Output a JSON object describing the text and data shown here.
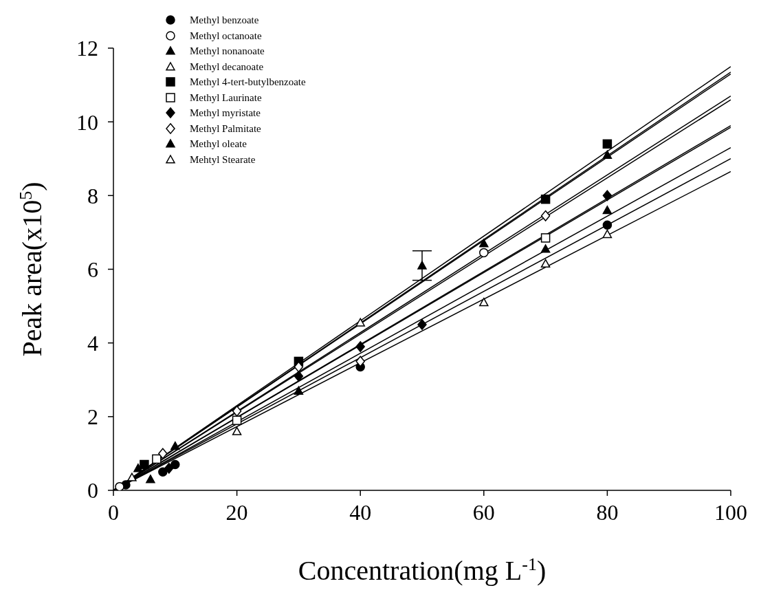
{
  "chart_data": {
    "type": "scatter",
    "xlabel": "Concentration(mg L$^{-1}$)",
    "ylabel": "Peak area(x10$^{5}$)",
    "xlim": [
      0,
      100
    ],
    "xticks": [
      0,
      20,
      40,
      60,
      80,
      100
    ],
    "ylim": [
      0,
      12
    ],
    "yticks": [
      0,
      2,
      4,
      6,
      8,
      10,
      12
    ],
    "grid": false,
    "legend": "top left",
    "series": [
      {
        "name": "Methyl benzoate",
        "color": "#000000",
        "marker": "circle",
        "x": [
          2,
          8,
          10,
          40,
          80
        ],
        "values": [
          0.15,
          0.5,
          0.7,
          3.35,
          7.2
        ]
      },
      {
        "name": "Methyl octanoate",
        "color": "#ffffff",
        "marker": "circle",
        "x": [
          1,
          60
        ],
        "values": [
          0.1,
          6.45
        ]
      },
      {
        "name": "Methyl nonanoate",
        "color": "#000000",
        "marker": "triangle",
        "x": [
          6,
          30,
          70,
          80
        ],
        "values": [
          0.3,
          2.7,
          6.55,
          7.6
        ]
      },
      {
        "name": "Methyl decanoate",
        "color": "#ffffff",
        "marker": "triangle",
        "x": [
          3,
          40
        ],
        "values": [
          0.35,
          4.55
        ]
      },
      {
        "name": "Methyl 4-tert-butylbenzoate",
        "color": "#000000",
        "marker": "square",
        "x": [
          5,
          30,
          70,
          80
        ],
        "values": [
          0.7,
          3.5,
          7.9,
          9.4
        ]
      },
      {
        "name": "Methyl Laurinate",
        "color": "#ffffff",
        "marker": "square",
        "x": [
          7,
          20,
          70
        ],
        "values": [
          0.85,
          1.9,
          6.85
        ]
      },
      {
        "name": "Methyl myristate",
        "color": "#000000",
        "marker": "diamond",
        "x": [
          9,
          30,
          40,
          50,
          80
        ],
        "values": [
          0.6,
          3.1,
          3.9,
          4.5,
          8.0
        ]
      },
      {
        "name": "Methyl Palmitate",
        "color": "#ffffff",
        "marker": "diamond",
        "x": [
          8,
          20,
          30,
          40,
          70
        ],
        "values": [
          1.0,
          2.15,
          3.35,
          3.5,
          7.45
        ]
      },
      {
        "name": "Methyl oleate",
        "color": "#000000",
        "marker": "triangle",
        "x": [
          4,
          10,
          50,
          60,
          80
        ],
        "values": [
          0.6,
          1.2,
          6.1,
          6.7,
          9.1
        ],
        "errors": [
          null,
          null,
          0.4,
          null,
          null
        ]
      },
      {
        "name": "Mehtyl Stearate",
        "color": "#ffffff",
        "marker": "triangle",
        "x": [
          20,
          60,
          70,
          80
        ],
        "values": [
          1.6,
          5.1,
          6.15,
          6.95
        ]
      },
      {
        "type": "line",
        "color": "#000000",
        "x": [
          0,
          100
        ],
        "values": [
          0,
          9.0
        ]
      },
      {
        "type": "line",
        "color": "#000000",
        "x": [
          0,
          100
        ],
        "values": [
          0,
          10.7
        ]
      },
      {
        "type": "line",
        "color": "#000000",
        "x": [
          0,
          100
        ],
        "values": [
          0,
          9.3
        ]
      },
      {
        "type": "line",
        "color": "#000000",
        "x": [
          0,
          100
        ],
        "values": [
          0,
          11.3
        ]
      },
      {
        "type": "line",
        "color": "#000000",
        "x": [
          0,
          100
        ],
        "values": [
          0,
          11.35
        ]
      },
      {
        "type": "line",
        "color": "#000000",
        "x": [
          0,
          100
        ],
        "values": [
          0,
          9.9
        ]
      },
      {
        "type": "line",
        "color": "#000000",
        "x": [
          0,
          100
        ],
        "values": [
          0,
          9.85
        ]
      },
      {
        "type": "line",
        "color": "#000000",
        "x": [
          0,
          100
        ],
        "values": [
          0,
          10.6
        ]
      },
      {
        "type": "line",
        "color": "#000000",
        "x": [
          0,
          100
        ],
        "values": [
          0,
          11.5
        ]
      },
      {
        "type": "line",
        "color": "#000000",
        "x": [
          0,
          100
        ],
        "values": [
          0,
          8.65
        ]
      }
    ]
  }
}
